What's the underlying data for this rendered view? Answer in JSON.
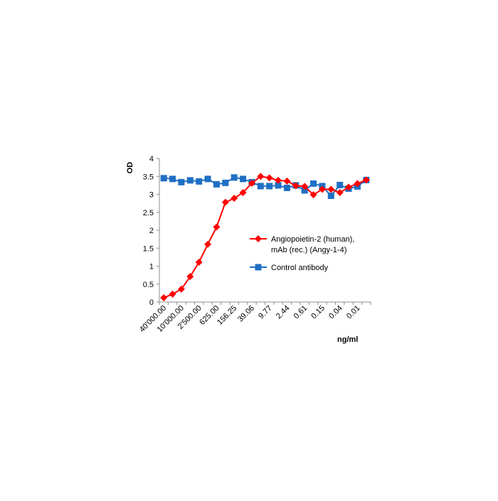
{
  "chart_data": {
    "type": "line",
    "ylabel": "OD",
    "xlabel": "ng/ml",
    "ylim": [
      0,
      4
    ],
    "y_ticks": [
      "0",
      "0.5",
      "1",
      "1.5",
      "2",
      "2.5",
      "3",
      "3.5",
      "4"
    ],
    "x_tick_labels": [
      "40'000.00",
      "10'000.00",
      "2'500.00",
      "625.00",
      "156.25",
      "39.06",
      "9.77",
      "2.44",
      "0.61",
      "0.15",
      "0.04",
      "0.01"
    ],
    "grid": false,
    "legend_position": "right",
    "series": [
      {
        "name": "Angiopoietin-2 (human), mAb (rec.) (Angy-1-4)",
        "legend_lines": [
          "Angiopoietin-2 (human),",
          "mAb (rec.) (Angy-1-4)"
        ],
        "color": "#ff0000",
        "marker": "diamond",
        "values": [
          0.12,
          0.22,
          0.36,
          0.71,
          1.11,
          1.61,
          2.09,
          2.78,
          2.89,
          3.05,
          3.31,
          3.5,
          3.46,
          3.39,
          3.37,
          3.24,
          3.22,
          2.99,
          3.14,
          3.14,
          3.05,
          3.2,
          3.3,
          3.4
        ]
      },
      {
        "name": "Control antibody",
        "legend_lines": [
          "Control antibody"
        ],
        "color": "#1f6fc4",
        "marker": "square",
        "values": [
          3.45,
          3.43,
          3.34,
          3.39,
          3.36,
          3.43,
          3.28,
          3.32,
          3.47,
          3.43,
          3.34,
          3.23,
          3.23,
          3.25,
          3.18,
          3.25,
          3.11,
          3.3,
          3.23,
          2.96,
          3.26,
          3.16,
          3.22,
          3.4
        ]
      }
    ]
  }
}
